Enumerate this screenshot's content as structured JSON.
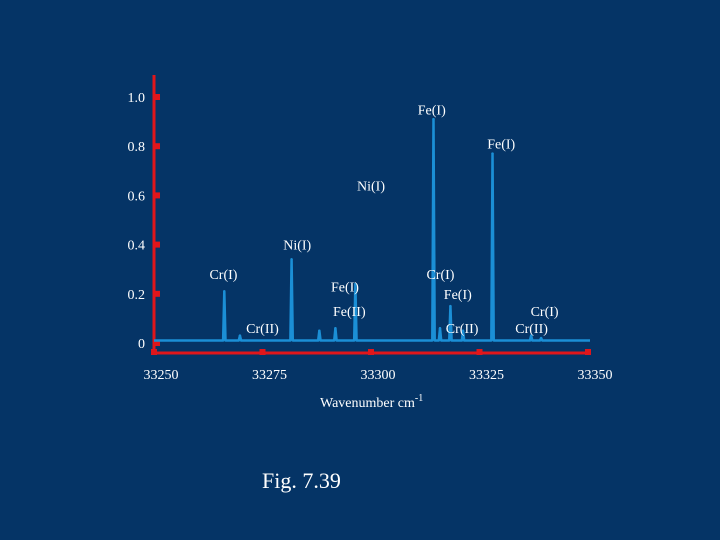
{
  "colors": {
    "background": "#053466",
    "axis": "#e0161b",
    "spectrum": "#1b8fd6",
    "text": "#ffffff"
  },
  "chart_data": {
    "type": "line",
    "title": "",
    "xlabel": "Wavenumber cm",
    "xlabel_superscript": "-1",
    "ylabel": "",
    "xlim": [
      33250,
      33350
    ],
    "ylim": [
      0,
      1.0
    ],
    "x_ticks": [
      33250,
      33275,
      33300,
      33325,
      33350
    ],
    "x_tick_labels": [
      "33250",
      "33275",
      "33300",
      "33325",
      "33350"
    ],
    "y_ticks": [
      0,
      0.2,
      0.4,
      0.6,
      0.8,
      1.0
    ],
    "y_tick_labels": [
      "0",
      "0.2",
      "0.4",
      "0.6",
      "0.8",
      "1.0"
    ],
    "grid": false,
    "baseline": 0.01,
    "series": [
      {
        "peaks": [
          {
            "x": 33266.2,
            "y": 0.21
          },
          {
            "x": 33269.8,
            "y": 0.03
          },
          {
            "x": 33281.7,
            "y": 0.34
          },
          {
            "x": 33288.1,
            "y": 0.05
          },
          {
            "x": 33291.8,
            "y": 0.06
          },
          {
            "x": 33296.4,
            "y": 0.24
          },
          {
            "x": 33314.4,
            "y": 0.91
          },
          {
            "x": 33315.9,
            "y": 0.06
          },
          {
            "x": 33318.3,
            "y": 0.15
          },
          {
            "x": 33321.2,
            "y": 0.05
          },
          {
            "x": 33328.0,
            "y": 0.77
          },
          {
            "x": 33336.9,
            "y": 0.03
          },
          {
            "x": 33339.2,
            "y": 0.02
          }
        ]
      }
    ],
    "annotations": [
      {
        "text": "Fe(I)",
        "x": 33314,
        "y": 0.95
      },
      {
        "text": "Fe(I)",
        "x": 33330,
        "y": 0.81
      },
      {
        "text": "Ni(I)",
        "x": 33300,
        "y": 0.64
      },
      {
        "text": "Ni(I)",
        "x": 33283,
        "y": 0.4
      },
      {
        "text": "Cr(I)",
        "x": 33266,
        "y": 0.28
      },
      {
        "text": "Cr(I)",
        "x": 33316,
        "y": 0.28
      },
      {
        "text": "Fe(I)",
        "x": 33294,
        "y": 0.23
      },
      {
        "text": "Fe(I)",
        "x": 33320,
        "y": 0.2
      },
      {
        "text": "Fe(II)",
        "x": 33295,
        "y": 0.13
      },
      {
        "text": "Cr(I)",
        "x": 33340,
        "y": 0.13
      },
      {
        "text": "Cr(II)",
        "x": 33275,
        "y": 0.06
      },
      {
        "text": "Cr(II)",
        "x": 33321,
        "y": 0.06
      },
      {
        "text": "Cr(II)",
        "x": 33337,
        "y": 0.06
      }
    ]
  },
  "caption": "Fig. 7.39"
}
